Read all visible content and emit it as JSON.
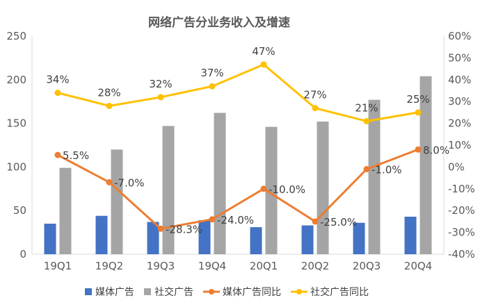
{
  "chart_data": {
    "type": "bar",
    "title": "网络广告分业务收入及增速",
    "categories": [
      "19Q1",
      "19Q2",
      "19Q3",
      "19Q4",
      "20Q1",
      "20Q2",
      "20Q3",
      "20Q4"
    ],
    "y_left": {
      "min": 0,
      "max": 250,
      "step": 50,
      "ticks": [
        "0",
        "50",
        "100",
        "150",
        "200",
        "250"
      ]
    },
    "y_right": {
      "min": -40,
      "max": 60,
      "step": 10,
      "ticks": [
        "-40%",
        "-30%",
        "-20%",
        "-10%",
        "0%",
        "10%",
        "20%",
        "30%",
        "40%",
        "50%",
        "60%"
      ]
    },
    "series": [
      {
        "name": "媒体广告",
        "kind": "bar",
        "axis": "left",
        "color": "#4472C4",
        "values": [
          35,
          44,
          37,
          39,
          31,
          33,
          36,
          43
        ]
      },
      {
        "name": "社交广告",
        "kind": "bar",
        "axis": "left",
        "color": "#A5A5A5",
        "values": [
          99,
          120,
          147,
          162,
          146,
          152,
          177,
          204
        ]
      },
      {
        "name": "媒体广告同比",
        "kind": "line",
        "axis": "right",
        "color": "#ED7D31",
        "values": [
          5.5,
          -7.0,
          -28.3,
          -24.0,
          -10.0,
          -25.0,
          -1.0,
          8.0
        ],
        "labels": [
          "5.5%",
          "-7.0%",
          "-28.3%",
          "-24.0%",
          "-10.0%",
          "-25.0%",
          "-1.0%",
          "8.0%"
        ]
      },
      {
        "name": "社交广告同比",
        "kind": "line",
        "axis": "right",
        "color": "#FFC000",
        "values": [
          34,
          28,
          32,
          37,
          47,
          27,
          21,
          25
        ],
        "labels": [
          "34%",
          "28%",
          "32%",
          "37%",
          "47%",
          "27%",
          "21%",
          "25%"
        ]
      }
    ],
    "grid": false,
    "legend_position": "bottom"
  }
}
